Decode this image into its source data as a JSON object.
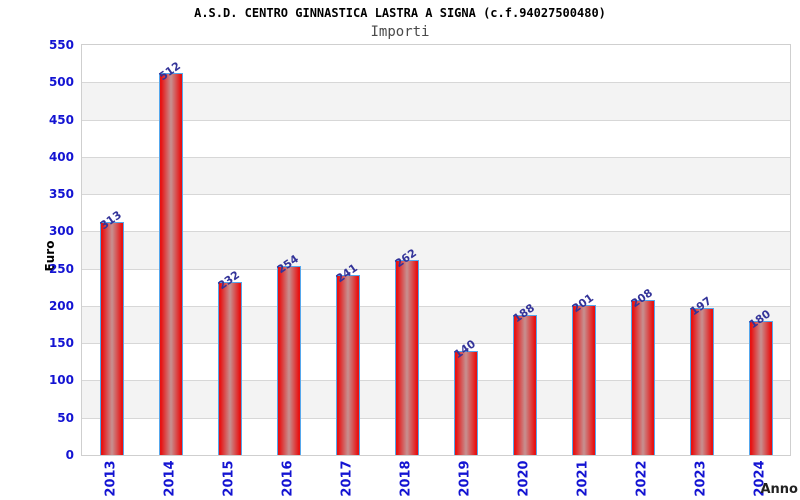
{
  "header": {
    "title": "A.S.D. CENTRO GINNASTICA LASTRA A SIGNA (c.f.94027500480)",
    "subtitle": "Importi"
  },
  "chart_data": {
    "type": "bar",
    "title": "A.S.D. CENTRO GINNASTICA LASTRA A SIGNA (c.f.94027500480)",
    "subtitle": "Importi",
    "xlabel": "Anno",
    "ylabel": "Euro",
    "categories": [
      "2013",
      "2014",
      "2015",
      "2016",
      "2017",
      "2018",
      "2019",
      "2020",
      "2021",
      "2022",
      "2023",
      "2024"
    ],
    "values": [
      313,
      512,
      232,
      254,
      241,
      262,
      140,
      188,
      201,
      208,
      197,
      180
    ],
    "ylim": [
      0,
      550
    ],
    "yticks": [
      0,
      50,
      100,
      150,
      200,
      250,
      300,
      350,
      400,
      450,
      500,
      550
    ],
    "grid": true,
    "legend": "none",
    "colors": {
      "bar_edge": "#e81111",
      "bar_center": "#c69191",
      "bar_border": "#55a7ec",
      "axis_tick_label": "#1414d2",
      "value_label": "#333399",
      "band_alt": "#f3f3f3",
      "gridline": "#d7d7d7",
      "plot_border": "#cfcfcf"
    }
  }
}
